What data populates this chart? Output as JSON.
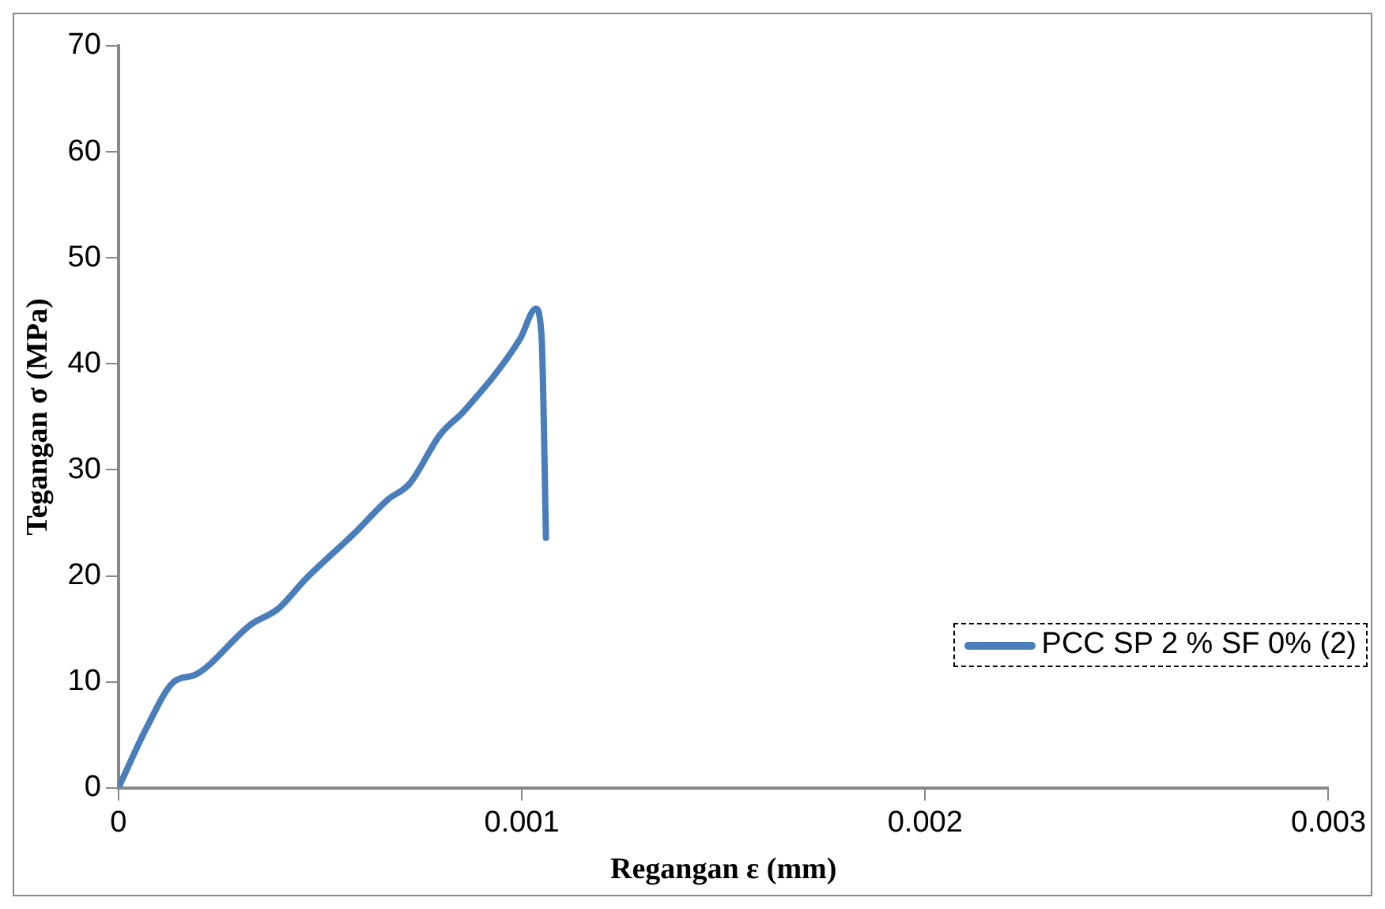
{
  "chart_data": {
    "type": "line",
    "xlabel": "Regangan ε (mm)",
    "ylabel": "Tegangan σ (MPa)",
    "xlim": [
      0,
      0.003
    ],
    "xticks": [
      0,
      0.001,
      0.002,
      0.003
    ],
    "ylim": [
      0,
      70
    ],
    "yticks": [
      0,
      10,
      20,
      30,
      40,
      50,
      60,
      70
    ],
    "grid": false,
    "legend": "right",
    "marker": "none",
    "line_style": "solid",
    "series": [
      {
        "name": "PCC SP 2 % SF 0% (2)",
        "color": "#4a7ebb",
        "x": [
          0,
          7e-05,
          0.000137,
          0.000192,
          0.000328,
          0.000396,
          0.000464,
          0.000587,
          0.000668,
          0.000722,
          0.000797,
          0.000858,
          0.000995,
          0.001035,
          0.001049,
          0.00106
        ],
        "values": [
          0,
          5.7,
          10,
          10.7,
          15.4,
          16.9,
          19.7,
          24.1,
          27.2,
          28.7,
          33.3,
          35.6,
          42.3,
          45.2,
          42.6,
          23.6
        ]
      }
    ]
  }
}
